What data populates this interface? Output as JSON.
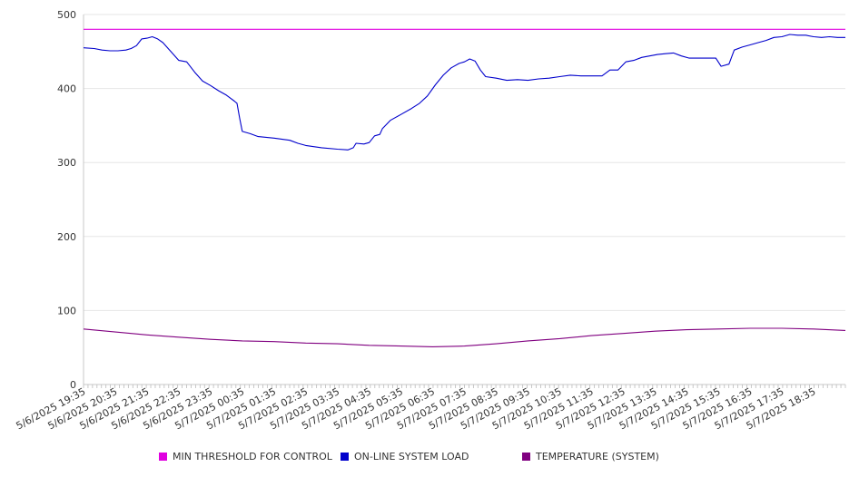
{
  "chart_data": {
    "type": "line",
    "title": "",
    "xlabel": "",
    "ylabel": "",
    "ylim": [
      0,
      500
    ],
    "yticks": [
      0,
      100,
      200,
      300,
      400,
      500
    ],
    "grid": "horizontal",
    "legend_position": "bottom",
    "x_start": "5/6/2025 19:35",
    "x_end": "5/7/2025 19:35",
    "x_tick_labels": [
      "5/6/2025 19:35",
      "5/6/2025 20:35",
      "5/6/2025 21:35",
      "5/6/2025 22:35",
      "5/6/2025 23:35",
      "5/7/2025 00:35",
      "5/7/2025 01:35",
      "5/7/2025 02:35",
      "5/7/2025 03:35",
      "5/7/2025 04:35",
      "5/7/2025 05:35",
      "5/7/2025 06:35",
      "5/7/2025 07:35",
      "5/7/2025 08:35",
      "5/7/2025 09:35",
      "5/7/2025 10:35",
      "5/7/2025 11:35",
      "5/7/2025 12:35",
      "5/7/2025 13:35",
      "5/7/2025 14:35",
      "5/7/2025 15:35",
      "5/7/2025 16:35",
      "5/7/2025 17:35",
      "5/7/2025 18:35"
    ],
    "series": [
      {
        "name": "MIN THRESHOLD FOR CONTROL",
        "color": "#e000e0",
        "points": [
          [
            "5/6/2025 19:35",
            480
          ],
          [
            "5/7/2025 19:35",
            480
          ]
        ]
      },
      {
        "name": "ON-LINE SYSTEM LOAD",
        "color": "#0000cc",
        "points": [
          [
            "5/6/2025 19:35",
            455
          ],
          [
            "5/6/2025 19:55",
            454
          ],
          [
            "5/6/2025 20:10",
            452
          ],
          [
            "5/6/2025 20:25",
            451
          ],
          [
            "5/6/2025 20:40",
            451
          ],
          [
            "5/6/2025 20:55",
            452
          ],
          [
            "5/6/2025 21:05",
            454
          ],
          [
            "5/6/2025 21:15",
            458
          ],
          [
            "5/6/2025 21:25",
            467
          ],
          [
            "5/6/2025 21:35",
            468
          ],
          [
            "5/6/2025 21:45",
            470
          ],
          [
            "5/6/2025 21:55",
            467
          ],
          [
            "5/6/2025 22:05",
            462
          ],
          [
            "5/6/2025 22:20",
            450
          ],
          [
            "5/6/2025 22:35",
            438
          ],
          [
            "5/6/2025 22:50",
            436
          ],
          [
            "5/6/2025 23:05",
            422
          ],
          [
            "5/6/2025 23:20",
            410
          ],
          [
            "5/6/2025 23:35",
            404
          ],
          [
            "5/6/2025 23:50",
            397
          ],
          [
            "5/7/2025 00:05",
            391
          ],
          [
            "5/7/2025 00:20",
            383
          ],
          [
            "5/7/2025 00:25",
            380
          ],
          [
            "5/7/2025 00:30",
            360
          ],
          [
            "5/7/2025 00:35",
            342
          ],
          [
            "5/7/2025 00:50",
            339
          ],
          [
            "5/7/2025 01:05",
            335
          ],
          [
            "5/7/2025 01:35",
            333
          ],
          [
            "5/7/2025 02:05",
            330
          ],
          [
            "5/7/2025 02:20",
            326
          ],
          [
            "5/7/2025 02:35",
            323
          ],
          [
            "5/7/2025 03:05",
            320
          ],
          [
            "5/7/2025 03:35",
            318
          ],
          [
            "5/7/2025 03:55",
            317
          ],
          [
            "5/7/2025 04:05",
            320
          ],
          [
            "5/7/2025 04:10",
            326
          ],
          [
            "5/7/2025 04:25",
            325
          ],
          [
            "5/7/2025 04:35",
            327
          ],
          [
            "5/7/2025 04:45",
            336
          ],
          [
            "5/7/2025 04:55",
            338
          ],
          [
            "5/7/2025 05:00",
            346
          ],
          [
            "5/7/2025 05:15",
            357
          ],
          [
            "5/7/2025 05:35",
            365
          ],
          [
            "5/7/2025 05:55",
            373
          ],
          [
            "5/7/2025 06:10",
            380
          ],
          [
            "5/7/2025 06:25",
            390
          ],
          [
            "5/7/2025 06:40",
            405
          ],
          [
            "5/7/2025 06:55",
            418
          ],
          [
            "5/7/2025 07:10",
            428
          ],
          [
            "5/7/2025 07:25",
            434
          ],
          [
            "5/7/2025 07:35",
            436
          ],
          [
            "5/7/2025 07:45",
            440
          ],
          [
            "5/7/2025 07:55",
            437
          ],
          [
            "5/7/2025 08:05",
            425
          ],
          [
            "5/7/2025 08:15",
            416
          ],
          [
            "5/7/2025 08:35",
            414
          ],
          [
            "5/7/2025 08:55",
            411
          ],
          [
            "5/7/2025 09:15",
            412
          ],
          [
            "5/7/2025 09:35",
            411
          ],
          [
            "5/7/2025 09:55",
            413
          ],
          [
            "5/7/2025 10:15",
            414
          ],
          [
            "5/7/2025 10:35",
            416
          ],
          [
            "5/7/2025 10:55",
            418
          ],
          [
            "5/7/2025 11:15",
            417
          ],
          [
            "5/7/2025 11:35",
            417
          ],
          [
            "5/7/2025 11:55",
            417
          ],
          [
            "5/7/2025 12:10",
            425
          ],
          [
            "5/7/2025 12:25",
            425
          ],
          [
            "5/7/2025 12:40",
            436
          ],
          [
            "5/7/2025 12:55",
            438
          ],
          [
            "5/7/2025 13:10",
            442
          ],
          [
            "5/7/2025 13:25",
            444
          ],
          [
            "5/7/2025 13:40",
            446
          ],
          [
            "5/7/2025 13:55",
            447
          ],
          [
            "5/7/2025 14:10",
            448
          ],
          [
            "5/7/2025 14:25",
            444
          ],
          [
            "5/7/2025 14:40",
            441
          ],
          [
            "5/7/2025 14:55",
            441
          ],
          [
            "5/7/2025 15:15",
            441
          ],
          [
            "5/7/2025 15:30",
            441
          ],
          [
            "5/7/2025 15:40",
            430
          ],
          [
            "5/7/2025 15:55",
            433
          ],
          [
            "5/7/2025 16:05",
            452
          ],
          [
            "5/7/2025 16:20",
            456
          ],
          [
            "5/7/2025 16:35",
            459
          ],
          [
            "5/7/2025 16:50",
            462
          ],
          [
            "5/7/2025 17:05",
            465
          ],
          [
            "5/7/2025 17:20",
            469
          ],
          [
            "5/7/2025 17:35",
            470
          ],
          [
            "5/7/2025 17:50",
            473
          ],
          [
            "5/7/2025 18:05",
            472
          ],
          [
            "5/7/2025 18:20",
            472
          ],
          [
            "5/7/2025 18:35",
            470
          ],
          [
            "5/7/2025 18:50",
            469
          ],
          [
            "5/7/2025 19:05",
            470
          ],
          [
            "5/7/2025 19:20",
            469
          ],
          [
            "5/7/2025 19:35",
            469
          ]
        ]
      },
      {
        "name": "TEMPERATURE (SYSTEM)",
        "color": "#800080",
        "points": [
          [
            "5/6/2025 19:35",
            75
          ],
          [
            "5/6/2025 20:35",
            71
          ],
          [
            "5/6/2025 21:35",
            67
          ],
          [
            "5/6/2025 22:35",
            64
          ],
          [
            "5/6/2025 23:35",
            61
          ],
          [
            "5/7/2025 00:35",
            59
          ],
          [
            "5/7/2025 01:35",
            58
          ],
          [
            "5/7/2025 02:35",
            56
          ],
          [
            "5/7/2025 03:35",
            55
          ],
          [
            "5/7/2025 04:35",
            53
          ],
          [
            "5/7/2025 05:35",
            52
          ],
          [
            "5/7/2025 06:35",
            51
          ],
          [
            "5/7/2025 07:35",
            52
          ],
          [
            "5/7/2025 08:35",
            55
          ],
          [
            "5/7/2025 09:35",
            59
          ],
          [
            "5/7/2025 10:35",
            62
          ],
          [
            "5/7/2025 11:35",
            66
          ],
          [
            "5/7/2025 12:35",
            69
          ],
          [
            "5/7/2025 13:35",
            72
          ],
          [
            "5/7/2025 14:35",
            74
          ],
          [
            "5/7/2025 15:35",
            75
          ],
          [
            "5/7/2025 16:35",
            76
          ],
          [
            "5/7/2025 17:35",
            76
          ],
          [
            "5/7/2025 18:35",
            75
          ],
          [
            "5/7/2025 19:35",
            73
          ]
        ]
      }
    ]
  }
}
